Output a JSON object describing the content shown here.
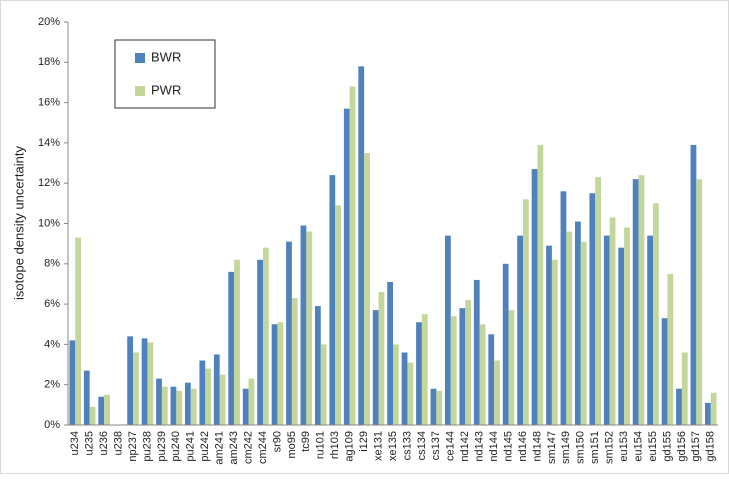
{
  "chart_data": {
    "type": "bar",
    "y_label": "isotope density uncertainty",
    "categories": [
      "u234",
      "u235",
      "u236",
      "u238",
      "np237",
      "pu238",
      "pu239",
      "pu240",
      "pu241",
      "pu242",
      "am241",
      "am243",
      "cm242",
      "cm244",
      "sr90",
      "mo95",
      "tc99",
      "ru101",
      "rh103",
      "ag109",
      "i129",
      "xe131",
      "xe135",
      "cs133",
      "cs134",
      "cs137",
      "ce144",
      "nd142",
      "nd143",
      "nd144",
      "nd145",
      "nd146",
      "nd148",
      "sm147",
      "sm149",
      "sm150",
      "sm151",
      "sm152",
      "eu153",
      "eu154",
      "eu155",
      "gd155",
      "gd156",
      "gd157",
      "gd158"
    ],
    "series": [
      {
        "name": "BWR",
        "color": "#4f81bd",
        "values": [
          4.2,
          2.7,
          1.4,
          0,
          4.4,
          4.3,
          2.3,
          1.9,
          2.1,
          3.2,
          3.5,
          7.6,
          1.8,
          8.2,
          5.0,
          9.1,
          9.9,
          5.9,
          12.4,
          15.7,
          17.8,
          5.7,
          7.1,
          3.6,
          5.1,
          1.8,
          9.4,
          5.8,
          7.2,
          4.5,
          8.0,
          9.4,
          12.7,
          8.9,
          11.6,
          10.1,
          11.5,
          9.4,
          8.8,
          12.2,
          9.4,
          5.3,
          1.8,
          13.9,
          1.1
        ]
      },
      {
        "name": "PWR",
        "color": "#c3d69b",
        "values": [
          9.3,
          0.9,
          1.5,
          0,
          3.6,
          4.1,
          1.9,
          1.7,
          1.8,
          2.8,
          2.5,
          8.2,
          2.3,
          8.8,
          5.1,
          6.3,
          9.6,
          4.0,
          10.9,
          16.8,
          13.5,
          6.6,
          4.0,
          3.1,
          5.5,
          1.7,
          5.4,
          6.2,
          5.0,
          3.2,
          5.7,
          11.2,
          13.9,
          8.2,
          9.6,
          9.1,
          12.3,
          10.3,
          9.8,
          12.4,
          11.0,
          7.5,
          3.6,
          12.2,
          1.6
        ]
      }
    ],
    "ylim": [
      0,
      20
    ],
    "yticks": [
      {
        "value": 0,
        "label": "0%"
      },
      {
        "value": 2,
        "label": "2%"
      },
      {
        "value": 4,
        "label": "4%"
      },
      {
        "value": 6,
        "label": "6%"
      },
      {
        "value": 8,
        "label": "8%"
      },
      {
        "value": 10,
        "label": "10%"
      },
      {
        "value": 12,
        "label": "12%"
      },
      {
        "value": 14,
        "label": "14%"
      },
      {
        "value": 16,
        "label": "16%"
      },
      {
        "value": 18,
        "label": "18%"
      },
      {
        "value": 20,
        "label": "20%"
      }
    ],
    "grid": false,
    "legend": "upper-left"
  }
}
